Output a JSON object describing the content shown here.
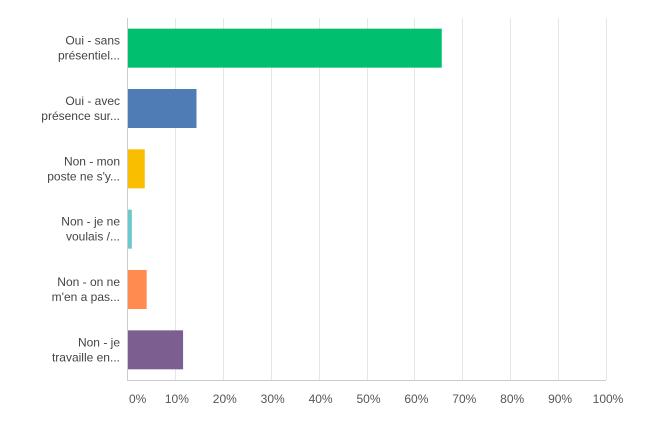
{
  "chart_data": {
    "type": "bar",
    "orientation": "horizontal",
    "categories": [
      [
        "Oui - sans",
        "présentiel..."
      ],
      [
        "Oui - avec",
        "présence sur..."
      ],
      [
        "Non - mon",
        "poste ne s'y..."
      ],
      [
        "Non - je ne",
        "voulais /..."
      ],
      [
        "Non - on ne",
        "m'en a pas..."
      ],
      [
        "Non - je",
        "travaille en..."
      ]
    ],
    "values": [
      65.5,
      14.3,
      3.5,
      0.8,
      3.9,
      11.5
    ],
    "colors": [
      "#00bf6f",
      "#507cb6",
      "#f9be00",
      "#6bc8cd",
      "#ff8b4f",
      "#7d5e90"
    ],
    "xlim": [
      0,
      100
    ],
    "x_ticks": [
      0,
      10,
      20,
      30,
      40,
      50,
      60,
      70,
      80,
      90,
      100
    ],
    "x_tick_labels": [
      "0%",
      "10%",
      "20%",
      "30%",
      "40%",
      "50%",
      "60%",
      "70%",
      "80%",
      "90%",
      "100%"
    ],
    "grid": true,
    "title": "",
    "xlabel": "",
    "ylabel": ""
  }
}
